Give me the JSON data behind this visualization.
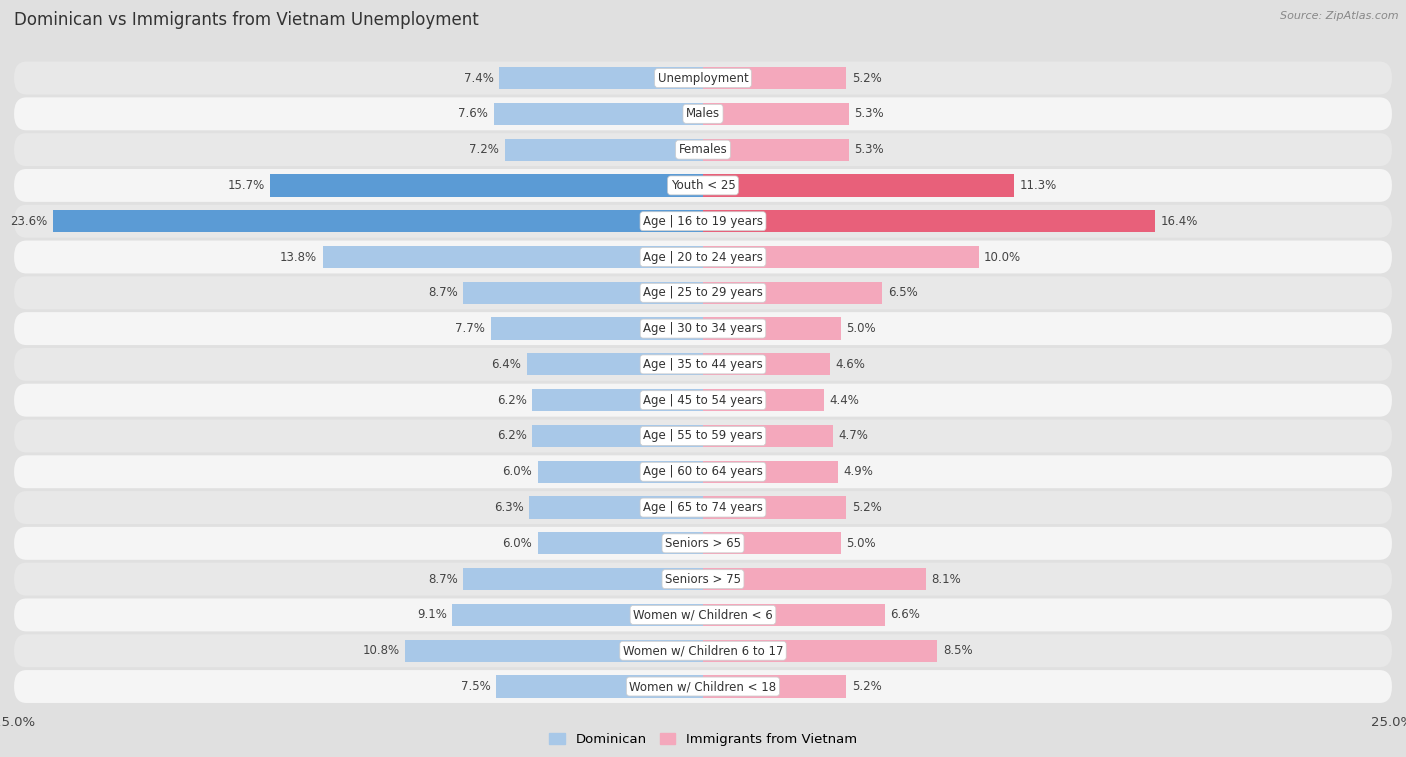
{
  "title": "Dominican vs Immigrants from Vietnam Unemployment",
  "source": "Source: ZipAtlas.com",
  "categories": [
    "Unemployment",
    "Males",
    "Females",
    "Youth < 25",
    "Age | 16 to 19 years",
    "Age | 20 to 24 years",
    "Age | 25 to 29 years",
    "Age | 30 to 34 years",
    "Age | 35 to 44 years",
    "Age | 45 to 54 years",
    "Age | 55 to 59 years",
    "Age | 60 to 64 years",
    "Age | 65 to 74 years",
    "Seniors > 65",
    "Seniors > 75",
    "Women w/ Children < 6",
    "Women w/ Children 6 to 17",
    "Women w/ Children < 18"
  ],
  "dominican": [
    7.4,
    7.6,
    7.2,
    15.7,
    23.6,
    13.8,
    8.7,
    7.7,
    6.4,
    6.2,
    6.2,
    6.0,
    6.3,
    6.0,
    8.7,
    9.1,
    10.8,
    7.5
  ],
  "vietnam": [
    5.2,
    5.3,
    5.3,
    11.3,
    16.4,
    10.0,
    6.5,
    5.0,
    4.6,
    4.4,
    4.7,
    4.9,
    5.2,
    5.0,
    8.1,
    6.6,
    8.5,
    5.2
  ],
  "dominican_color_normal": "#a8c8e8",
  "vietnam_color_normal": "#f4a8bc",
  "dominican_color_highlight": "#5b9bd5",
  "vietnam_color_highlight": "#e8607a",
  "highlight_rows": [
    3,
    4
  ],
  "row_color_odd": "#e8e8e8",
  "row_color_even": "#f5f5f5",
  "bg_color": "#e0e0e0",
  "axis_max": 25.0,
  "label_fontsize": 8.5,
  "title_fontsize": 12,
  "value_fontsize": 8.5,
  "legend_labels": [
    "Dominican",
    "Immigrants from Vietnam"
  ]
}
